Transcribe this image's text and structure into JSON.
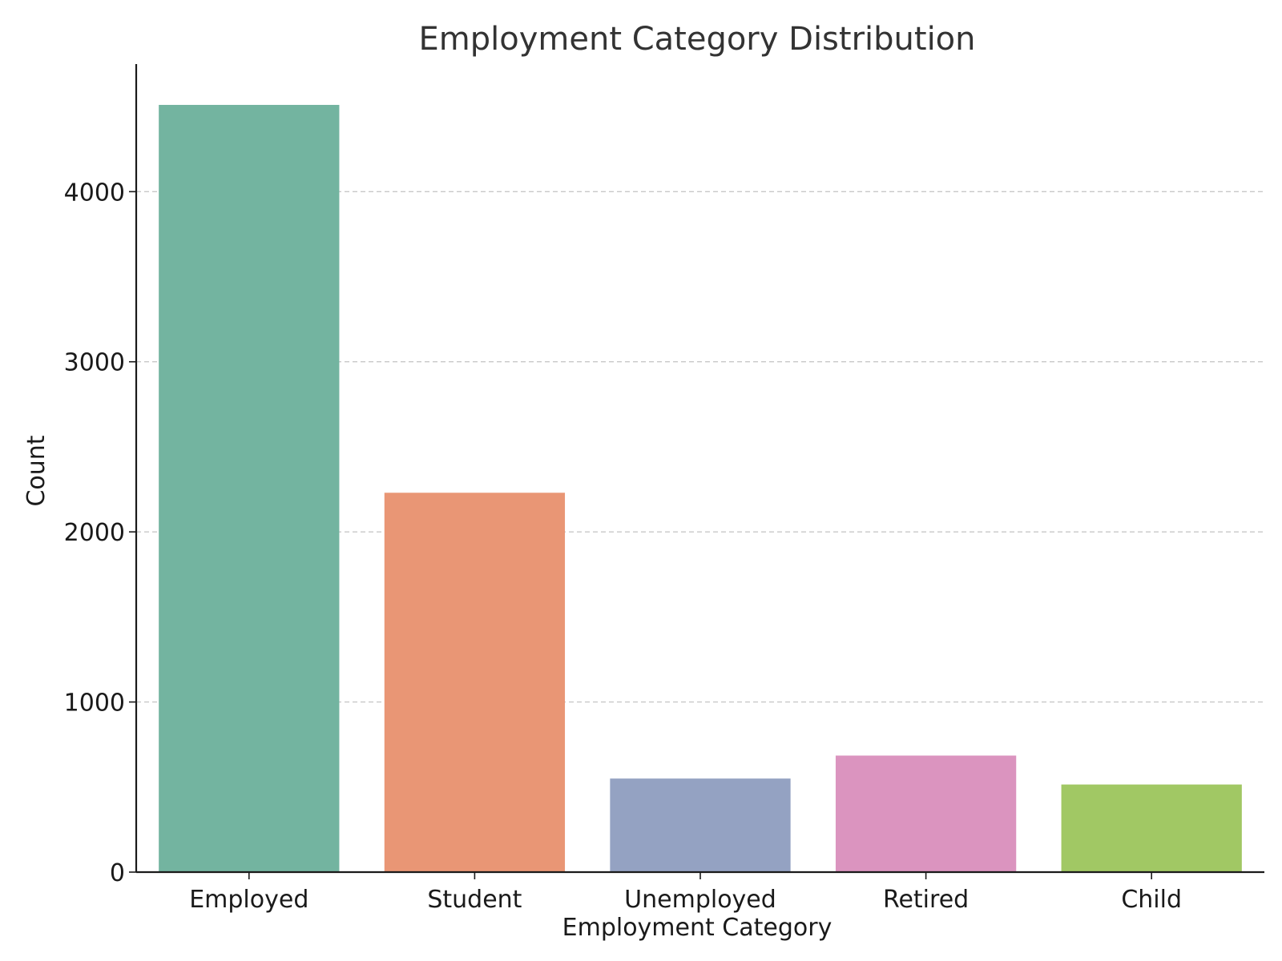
{
  "chart_data": {
    "type": "bar",
    "title": "Employment Category Distribution",
    "xlabel": "Employment Category",
    "ylabel": "Count",
    "categories": [
      "Employed",
      "Student",
      "Unemployed",
      "Retired",
      "Child"
    ],
    "values": [
      4510,
      2230,
      550,
      685,
      515
    ],
    "colors": [
      "#73b4a0",
      "#e99675",
      "#94a2c2",
      "#db94bf",
      "#a1c864"
    ],
    "ylim": [
      0,
      4750
    ],
    "yticks": [
      0,
      1000,
      2000,
      3000,
      4000
    ],
    "ytick_labels": [
      "0",
      "1000",
      "2000",
      "3000",
      "4000"
    ],
    "grid": "y-dashed",
    "legend": "none"
  }
}
